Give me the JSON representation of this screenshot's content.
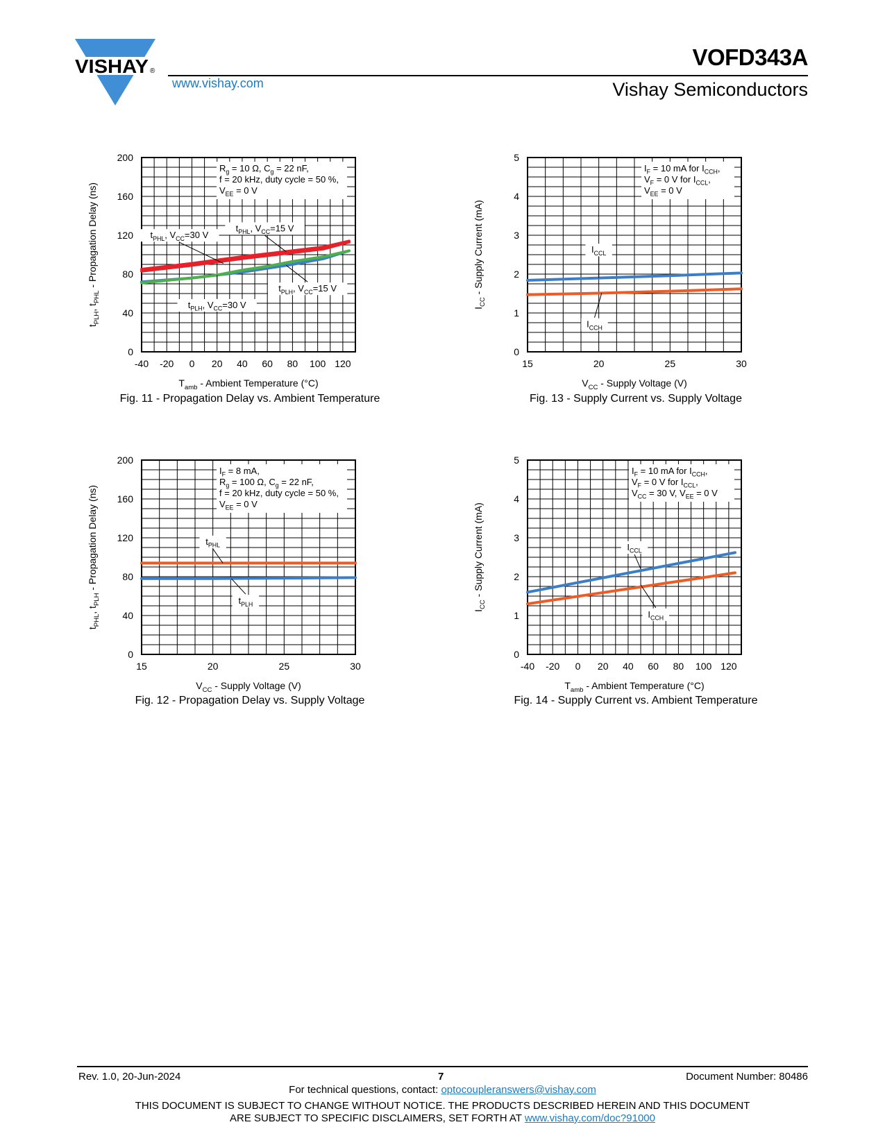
{
  "header": {
    "logo_text": "VISHAY",
    "registered_mark": "®",
    "website": "www.vishay.com",
    "part_number": "VOFD343A",
    "company": "Vishay Semiconductors"
  },
  "footer": {
    "revision": "Rev. 1.0, 20-Jun-2024",
    "page": "7",
    "document_number": "Document Number: 80486",
    "contact_prefix": "For technical questions, contact: ",
    "contact_email": "optocoupleranswers@vishay.com",
    "disclaimer_line1": "THIS DOCUMENT IS SUBJECT TO CHANGE WITHOUT NOTICE. THE PRODUCTS DESCRIBED HEREIN AND THIS DOCUMENT",
    "disclaimer_line2_prefix": "ARE SUBJECT TO SPECIFIC DISCLAIMERS, SET FORTH AT ",
    "disclaimer_link": "www.vishay.com/doc?91000"
  },
  "colors": {
    "brand_blue": "#3f8ed6",
    "link_blue": "#1d7bc1",
    "red": "#e8202a",
    "green": "#4db04a",
    "blue": "#3a7ec8",
    "orange": "#f05a23"
  },
  "chart_data": [
    {
      "id": "fig11",
      "type": "line",
      "caption": "Fig. 11 - Propagation Delay vs. Ambient Temperature",
      "xlabel": "Tamb - Ambient Temperature (°C)",
      "ylabel": "tPLH, tPHL - Propagation Delay (ns)",
      "xlim": [
        -40,
        130
      ],
      "ylim": [
        0,
        200
      ],
      "xticks": [
        -40,
        -20,
        0,
        20,
        40,
        60,
        80,
        100,
        120
      ],
      "yticks": [
        0,
        40,
        80,
        120,
        160,
        200
      ],
      "grid": true,
      "conditions": [
        "Rg = 10 Ω, Cg = 22 nF,",
        "f = 20 kHz, duty cycle = 50 %,",
        "VEE = 0 V"
      ],
      "series": [
        {
          "name": "tPHL, VCC=30 V",
          "color": "#e8202a",
          "x": [
            -40,
            0,
            40,
            80,
            105,
            125
          ],
          "y": [
            83,
            89,
            96,
            102,
            106,
            113
          ]
        },
        {
          "name": "tPHL, VCC=15 V",
          "color": "#e8202a",
          "x": [
            -40,
            0,
            40,
            80,
            105,
            125
          ],
          "y": [
            85,
            91,
            98,
            104,
            108,
            114
          ]
        },
        {
          "name": "tPLH, VCC=15 V",
          "color": "#3a7ec8",
          "x": [
            -40,
            0,
            20,
            40,
            60,
            80,
            105,
            125
          ],
          "y": [
            72,
            76,
            79,
            82,
            86,
            90,
            96,
            104
          ]
        },
        {
          "name": "tPLH, VCC=30 V",
          "color": "#4db04a",
          "x": [
            -40,
            0,
            20,
            40,
            60,
            80,
            105,
            125
          ],
          "y": [
            71,
            76,
            79,
            84,
            88,
            93,
            98,
            104
          ]
        }
      ]
    },
    {
      "id": "fig13",
      "type": "line",
      "caption": "Fig. 13 - Supply Current vs. Supply Voltage",
      "xlabel": "VCC - Supply Voltage (V)",
      "ylabel": "ICC - Supply Current (mA)",
      "xlim": [
        15,
        30
      ],
      "ylim": [
        0,
        5
      ],
      "xticks": [
        15,
        20,
        25,
        30
      ],
      "yticks": [
        0,
        1,
        2,
        3,
        4,
        5
      ],
      "grid": true,
      "conditions": [
        "IF = 10 mA for ICCH,",
        "VF = 0 V for ICCL,",
        "VEE = 0 V"
      ],
      "series": [
        {
          "name": "ICCL",
          "color": "#3a7ec8",
          "x": [
            15,
            20,
            25,
            30
          ],
          "y": [
            1.84,
            1.9,
            1.96,
            2.03
          ]
        },
        {
          "name": "ICCH",
          "color": "#f05a23",
          "x": [
            15,
            20,
            25,
            30
          ],
          "y": [
            1.47,
            1.51,
            1.56,
            1.62
          ]
        }
      ]
    },
    {
      "id": "fig12",
      "type": "line",
      "caption": "Fig. 12 - Propagation Delay vs. Supply Voltage",
      "xlabel": "VCC - Supply Voltage (V)",
      "ylabel": "tPHL, tPLH - Propagation Delay (ns)",
      "xlim": [
        15,
        30
      ],
      "ylim": [
        0,
        200
      ],
      "xticks": [
        15,
        20,
        25,
        30
      ],
      "yticks": [
        0,
        40,
        80,
        120,
        160,
        200
      ],
      "grid": true,
      "conditions": [
        "IF = 8 mA,",
        "Rg = 100 Ω, Cg = 22 nF,",
        "f = 20 kHz, duty cycle = 50 %,",
        "VEE = 0 V"
      ],
      "series": [
        {
          "name": "tPHL",
          "color": "#f05a23",
          "x": [
            15,
            20,
            25,
            30
          ],
          "y": [
            94,
            94,
            94,
            94
          ]
        },
        {
          "name": "tPLH",
          "color": "#3a7ec8",
          "x": [
            15,
            20,
            25,
            30
          ],
          "y": [
            78,
            78,
            78.5,
            79
          ]
        }
      ]
    },
    {
      "id": "fig14",
      "type": "line",
      "caption": "Fig. 14 - Supply Current vs. Ambient Temperature",
      "xlabel": "Tamb - Ambient Temperature (°C)",
      "ylabel": "ICC - Supply Current (mA)",
      "xlim": [
        -40,
        130
      ],
      "ylim": [
        0,
        5
      ],
      "xticks": [
        -40,
        -20,
        0,
        20,
        40,
        60,
        80,
        100,
        120
      ],
      "yticks": [
        0,
        1,
        2,
        3,
        4,
        5
      ],
      "grid": true,
      "conditions": [
        "IF = 10 mA for ICCH,",
        "VF = 0 V for ICCL,",
        "VCC = 30 V, VEE = 0 V"
      ],
      "series": [
        {
          "name": "ICCL",
          "color": "#3a7ec8",
          "x": [
            -40,
            125
          ],
          "y": [
            1.6,
            2.62
          ]
        },
        {
          "name": "ICCH",
          "color": "#f05a23",
          "x": [
            -40,
            125
          ],
          "y": [
            1.3,
            2.1
          ]
        }
      ]
    }
  ]
}
